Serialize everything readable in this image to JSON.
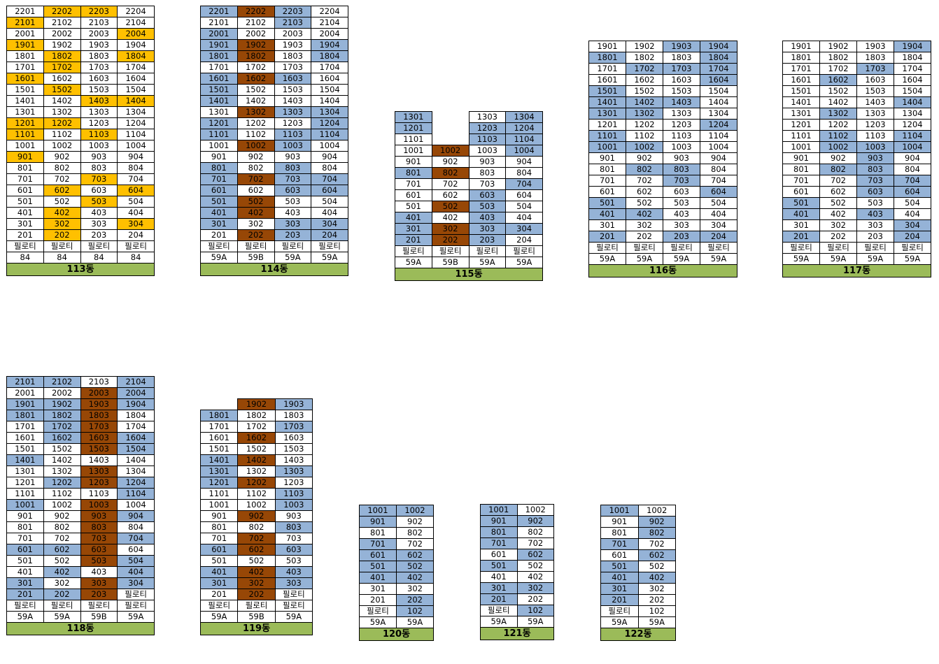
{
  "colors": {
    "yellow": "#ffc000",
    "blue": "#95b3d7",
    "brown": "#974706",
    "green": "#9bbb59"
  },
  "legend": {
    "y": "yellow highlighted unit",
    "b": "blue highlighted unit",
    "r": "brown highlighted unit",
    "-": "no unit"
  },
  "buildings": [
    {
      "label": "113동",
      "rows": [
        [
          "2201",
          "2202:y",
          "2203:y",
          "2204"
        ],
        [
          "2101:y",
          "2102",
          "2103",
          "2104"
        ],
        [
          "2001",
          "2002",
          "2003",
          "2004:y"
        ],
        [
          "1901:y",
          "1902",
          "1903",
          "1904"
        ],
        [
          "1801",
          "1802:y",
          "1803",
          "1804:y"
        ],
        [
          "1701",
          "1702:y",
          "1703",
          "1704"
        ],
        [
          "1601:y",
          "1602",
          "1603",
          "1604"
        ],
        [
          "1501",
          "1502:y",
          "1503",
          "1504"
        ],
        [
          "1401",
          "1402",
          "1403:y",
          "1404:y"
        ],
        [
          "1301",
          "1302",
          "1303",
          "1304"
        ],
        [
          "1201:y",
          "1202:y",
          "1203",
          "1204"
        ],
        [
          "1101:y",
          "1102",
          "1103:y",
          "1104"
        ],
        [
          "1001",
          "1002",
          "1003",
          "1004"
        ],
        [
          "901:y",
          "902",
          "903",
          "904"
        ],
        [
          "801",
          "802",
          "803",
          "804"
        ],
        [
          "701",
          "702",
          "703:y",
          "704"
        ],
        [
          "601",
          "602:y",
          "603",
          "604:y"
        ],
        [
          "501",
          "502",
          "503:y",
          "504"
        ],
        [
          "401",
          "402:y",
          "403",
          "404"
        ],
        [
          "301",
          "302:y",
          "303",
          "304:y"
        ],
        [
          "201",
          "202:y",
          "203",
          "204"
        ],
        [
          "필로티",
          "필로티",
          "필로티",
          "필로티"
        ],
        [
          "84",
          "84",
          "84",
          "84"
        ]
      ]
    },
    {
      "label": "114동",
      "rows": [
        [
          "2201:b",
          "2202:r",
          "2203:b",
          "2204"
        ],
        [
          "2101",
          "2102",
          "2103:b",
          "2104"
        ],
        [
          "2001:b",
          "2002",
          "2003",
          "2004"
        ],
        [
          "1901:b",
          "1902:r",
          "1903",
          "1904:b"
        ],
        [
          "1801:b",
          "1802:r",
          "1803",
          "1804:b"
        ],
        [
          "1701",
          "1702",
          "1703",
          "1704"
        ],
        [
          "1601:b",
          "1602:r",
          "1603:b",
          "1604"
        ],
        [
          "1501:b",
          "1502",
          "1503",
          "1504"
        ],
        [
          "1401:b",
          "1402",
          "1403",
          "1404"
        ],
        [
          "1301",
          "1302:r",
          "1303:b",
          "1304:b"
        ],
        [
          "1201:b",
          "1202",
          "1203",
          "1204:b"
        ],
        [
          "1101:b",
          "1102",
          "1103:b",
          "1104:b"
        ],
        [
          "1001",
          "1002:r",
          "1003:b",
          "1004"
        ],
        [
          "901",
          "902",
          "903",
          "904"
        ],
        [
          "801:b",
          "802",
          "803:b",
          "804"
        ],
        [
          "701:b",
          "702:r",
          "703:b",
          "704:b"
        ],
        [
          "601:b",
          "602",
          "603:b",
          "604:b"
        ],
        [
          "501:b",
          "502:r",
          "503",
          "504"
        ],
        [
          "401:b",
          "402:r",
          "403",
          "404"
        ],
        [
          "301:b",
          "302",
          "303:b",
          "304:b"
        ],
        [
          "201",
          "202:r",
          "203:b",
          "204:b"
        ],
        [
          "필로티",
          "필로티",
          "필로티",
          "필로티"
        ],
        [
          "59A",
          "59B",
          "59A",
          "59A"
        ]
      ]
    },
    {
      "label": "115동",
      "rows": [
        [
          "1301:b",
          "-",
          "1303",
          "1304:b"
        ],
        [
          "1201:b",
          "-",
          "1203:b",
          "1204:b"
        ],
        [
          "1101",
          "-",
          "1103:b",
          "1104:b"
        ],
        [
          "1001",
          "1002:r",
          "1003",
          "1004:b"
        ],
        [
          "901",
          "902",
          "903",
          "904"
        ],
        [
          "801:b",
          "802:r",
          "803",
          "804"
        ],
        [
          "701",
          "702",
          "703",
          "704:b"
        ],
        [
          "601",
          "602",
          "603:b",
          "604"
        ],
        [
          "501",
          "502:r",
          "503:b",
          "504"
        ],
        [
          "401:b",
          "402",
          "403:b",
          "404"
        ],
        [
          "301:b",
          "302:r",
          "303:b",
          "304:b"
        ],
        [
          "201:b",
          "202:r",
          "203:b",
          "204"
        ],
        [
          "필로티",
          "필로티",
          "필로티",
          "필로티"
        ],
        [
          "59A",
          "59B",
          "59A",
          "59A"
        ]
      ]
    },
    {
      "label": "116동",
      "rows": [
        [
          "1901",
          "1902",
          "1903:b",
          "1904:b"
        ],
        [
          "1801:b",
          "1802",
          "1803",
          "1804:b"
        ],
        [
          "1701",
          "1702:b",
          "1703:b",
          "1704:b"
        ],
        [
          "1601",
          "1602",
          "1603",
          "1604:b"
        ],
        [
          "1501:b",
          "1502",
          "1503",
          "1504"
        ],
        [
          "1401:b",
          "1402:b",
          "1403:b",
          "1404"
        ],
        [
          "1301:b",
          "1302:b",
          "1303",
          "1304"
        ],
        [
          "1201",
          "1202",
          "1203",
          "1204:b"
        ],
        [
          "1101:b",
          "1102",
          "1103",
          "1104"
        ],
        [
          "1001:b",
          "1002:b",
          "1003",
          "1004"
        ],
        [
          "901",
          "902",
          "903",
          "904"
        ],
        [
          "801",
          "802:b",
          "803:b",
          "804"
        ],
        [
          "701",
          "702",
          "703:b",
          "704"
        ],
        [
          "601",
          "602",
          "603",
          "604:b"
        ],
        [
          "501:b",
          "502",
          "503",
          "504"
        ],
        [
          "401:b",
          "402:b",
          "403",
          "404"
        ],
        [
          "301",
          "302",
          "303",
          "304"
        ],
        [
          "201:b",
          "202",
          "203:b",
          "204:b"
        ],
        [
          "필로티",
          "필로티",
          "필로티",
          "필로티"
        ],
        [
          "59A",
          "59A",
          "59A",
          "59A"
        ]
      ]
    },
    {
      "label": "117동",
      "rows": [
        [
          "1901",
          "1902",
          "1903",
          "1904:b"
        ],
        [
          "1801",
          "1802",
          "1803",
          "1804"
        ],
        [
          "1701",
          "1702",
          "1703:b",
          "1704"
        ],
        [
          "1601",
          "1602:b",
          "1603",
          "1604"
        ],
        [
          "1501",
          "1502",
          "1503",
          "1504"
        ],
        [
          "1401",
          "1402",
          "1403",
          "1404:b"
        ],
        [
          "1301",
          "1302:b",
          "1303",
          "1304"
        ],
        [
          "1201",
          "1202",
          "1203",
          "1204"
        ],
        [
          "1101",
          "1102:b",
          "1103",
          "1104:b"
        ],
        [
          "1001",
          "1002:b",
          "1003:b",
          "1004:b"
        ],
        [
          "901",
          "902",
          "903:b",
          "904"
        ],
        [
          "801",
          "802:b",
          "803:b",
          "804"
        ],
        [
          "701",
          "702",
          "703:b",
          "704:b"
        ],
        [
          "601",
          "602",
          "603:b",
          "604:b"
        ],
        [
          "501:b",
          "502",
          "503",
          "504"
        ],
        [
          "401:b",
          "402",
          "403:b",
          "404"
        ],
        [
          "301",
          "302",
          "303",
          "304:b"
        ],
        [
          "201:b",
          "202",
          "203",
          "204:b"
        ],
        [
          "필로티",
          "필로티",
          "필로티",
          "필로티"
        ],
        [
          "59A",
          "59A",
          "59A",
          "59A"
        ]
      ]
    },
    {
      "label": "118동",
      "rows": [
        [
          "2101:b",
          "2102:b",
          "2103",
          "2104:b"
        ],
        [
          "2001",
          "2002",
          "2003:r",
          "2004:b"
        ],
        [
          "1901:b",
          "1902:b",
          "1903:r",
          "1904:b"
        ],
        [
          "1801:b",
          "1802:b",
          "1803:r",
          "1804"
        ],
        [
          "1701",
          "1702:b",
          "1703:r",
          "1704"
        ],
        [
          "1601",
          "1602:b",
          "1603:r",
          "1604:b"
        ],
        [
          "1501",
          "1502",
          "1503:r",
          "1504:b"
        ],
        [
          "1401:b",
          "1402",
          "1403",
          "1404"
        ],
        [
          "1301",
          "1302",
          "1303:r",
          "1304"
        ],
        [
          "1201",
          "1202:b",
          "1203:r",
          "1204:b"
        ],
        [
          "1101",
          "1102",
          "1103",
          "1104:b"
        ],
        [
          "1001:b",
          "1002",
          "1003:r",
          "1004"
        ],
        [
          "901",
          "902",
          "903:r",
          "904:b"
        ],
        [
          "801",
          "802",
          "803:r",
          "804"
        ],
        [
          "701",
          "702",
          "703:r",
          "704:b"
        ],
        [
          "601:b",
          "602:b",
          "603:r",
          "604"
        ],
        [
          "501",
          "502",
          "503:r",
          "504:b"
        ],
        [
          "401",
          "402:b",
          "403",
          "404:b"
        ],
        [
          "301:b",
          "302",
          "303:r",
          "304:b"
        ],
        [
          "201:b",
          "202:b",
          "203:r",
          "필로티"
        ],
        [
          "필로티",
          "필로티",
          "필로티",
          "필로티"
        ],
        [
          "59A",
          "59A",
          "59B",
          "59A"
        ]
      ]
    },
    {
      "label": "119동",
      "rows": [
        [
          "-",
          "1902:r",
          "1903:b"
        ],
        [
          "1801:b",
          "1802",
          "1803"
        ],
        [
          "1701",
          "1702",
          "1703:b"
        ],
        [
          "1601",
          "1602:r",
          "1603"
        ],
        [
          "1501",
          "1502",
          "1503"
        ],
        [
          "1401:b",
          "1402:r",
          "1403"
        ],
        [
          "1301:b",
          "1302",
          "1303:b"
        ],
        [
          "1201:b",
          "1202:r",
          "1203"
        ],
        [
          "1101",
          "1102",
          "1103:b"
        ],
        [
          "1001",
          "1002",
          "1003:b"
        ],
        [
          "901",
          "902:r",
          "903"
        ],
        [
          "801",
          "802",
          "803:b"
        ],
        [
          "701",
          "702:r",
          "703"
        ],
        [
          "601:b",
          "602:r",
          "603:b"
        ],
        [
          "501",
          "502",
          "503"
        ],
        [
          "401:b",
          "402:r",
          "403:b"
        ],
        [
          "301:b",
          "302:r",
          "303:b"
        ],
        [
          "201",
          "202:r",
          "필로티"
        ],
        [
          "필로티",
          "필로티",
          "필로티"
        ],
        [
          "59A",
          "59B",
          "59A"
        ]
      ]
    },
    {
      "label": "120동",
      "rows": [
        [
          "1001:b",
          "1002:b"
        ],
        [
          "901:b",
          "902"
        ],
        [
          "801",
          "802"
        ],
        [
          "701:b",
          "702"
        ],
        [
          "601:b",
          "602:b"
        ],
        [
          "501:b",
          "502:b"
        ],
        [
          "401:b",
          "402:b"
        ],
        [
          "301",
          "302"
        ],
        [
          "201",
          "202:b"
        ],
        [
          "필로티",
          "102:b"
        ],
        [
          "59A",
          "59A"
        ]
      ]
    },
    {
      "label": "121동",
      "rows": [
        [
          "1001:b",
          "1002"
        ],
        [
          "901:b",
          "902:b"
        ],
        [
          "801:b",
          "802"
        ],
        [
          "701:b",
          "702"
        ],
        [
          "601",
          "602:b"
        ],
        [
          "501:b",
          "502"
        ],
        [
          "401",
          "402"
        ],
        [
          "301:b",
          "302:b"
        ],
        [
          "201:b",
          "202"
        ],
        [
          "필로티",
          "102:b"
        ],
        [
          "59A",
          "59A"
        ]
      ]
    },
    {
      "label": "122동",
      "rows": [
        [
          "1001:b",
          "1002"
        ],
        [
          "901",
          "902:b"
        ],
        [
          "801",
          "802:b"
        ],
        [
          "701:b",
          "702"
        ],
        [
          "601",
          "602:b"
        ],
        [
          "501:b",
          "502"
        ],
        [
          "401:b",
          "402:b"
        ],
        [
          "301:b",
          "302"
        ],
        [
          "201:b",
          "202"
        ],
        [
          "필로티",
          "102"
        ],
        [
          "59A",
          "59A"
        ]
      ]
    }
  ]
}
